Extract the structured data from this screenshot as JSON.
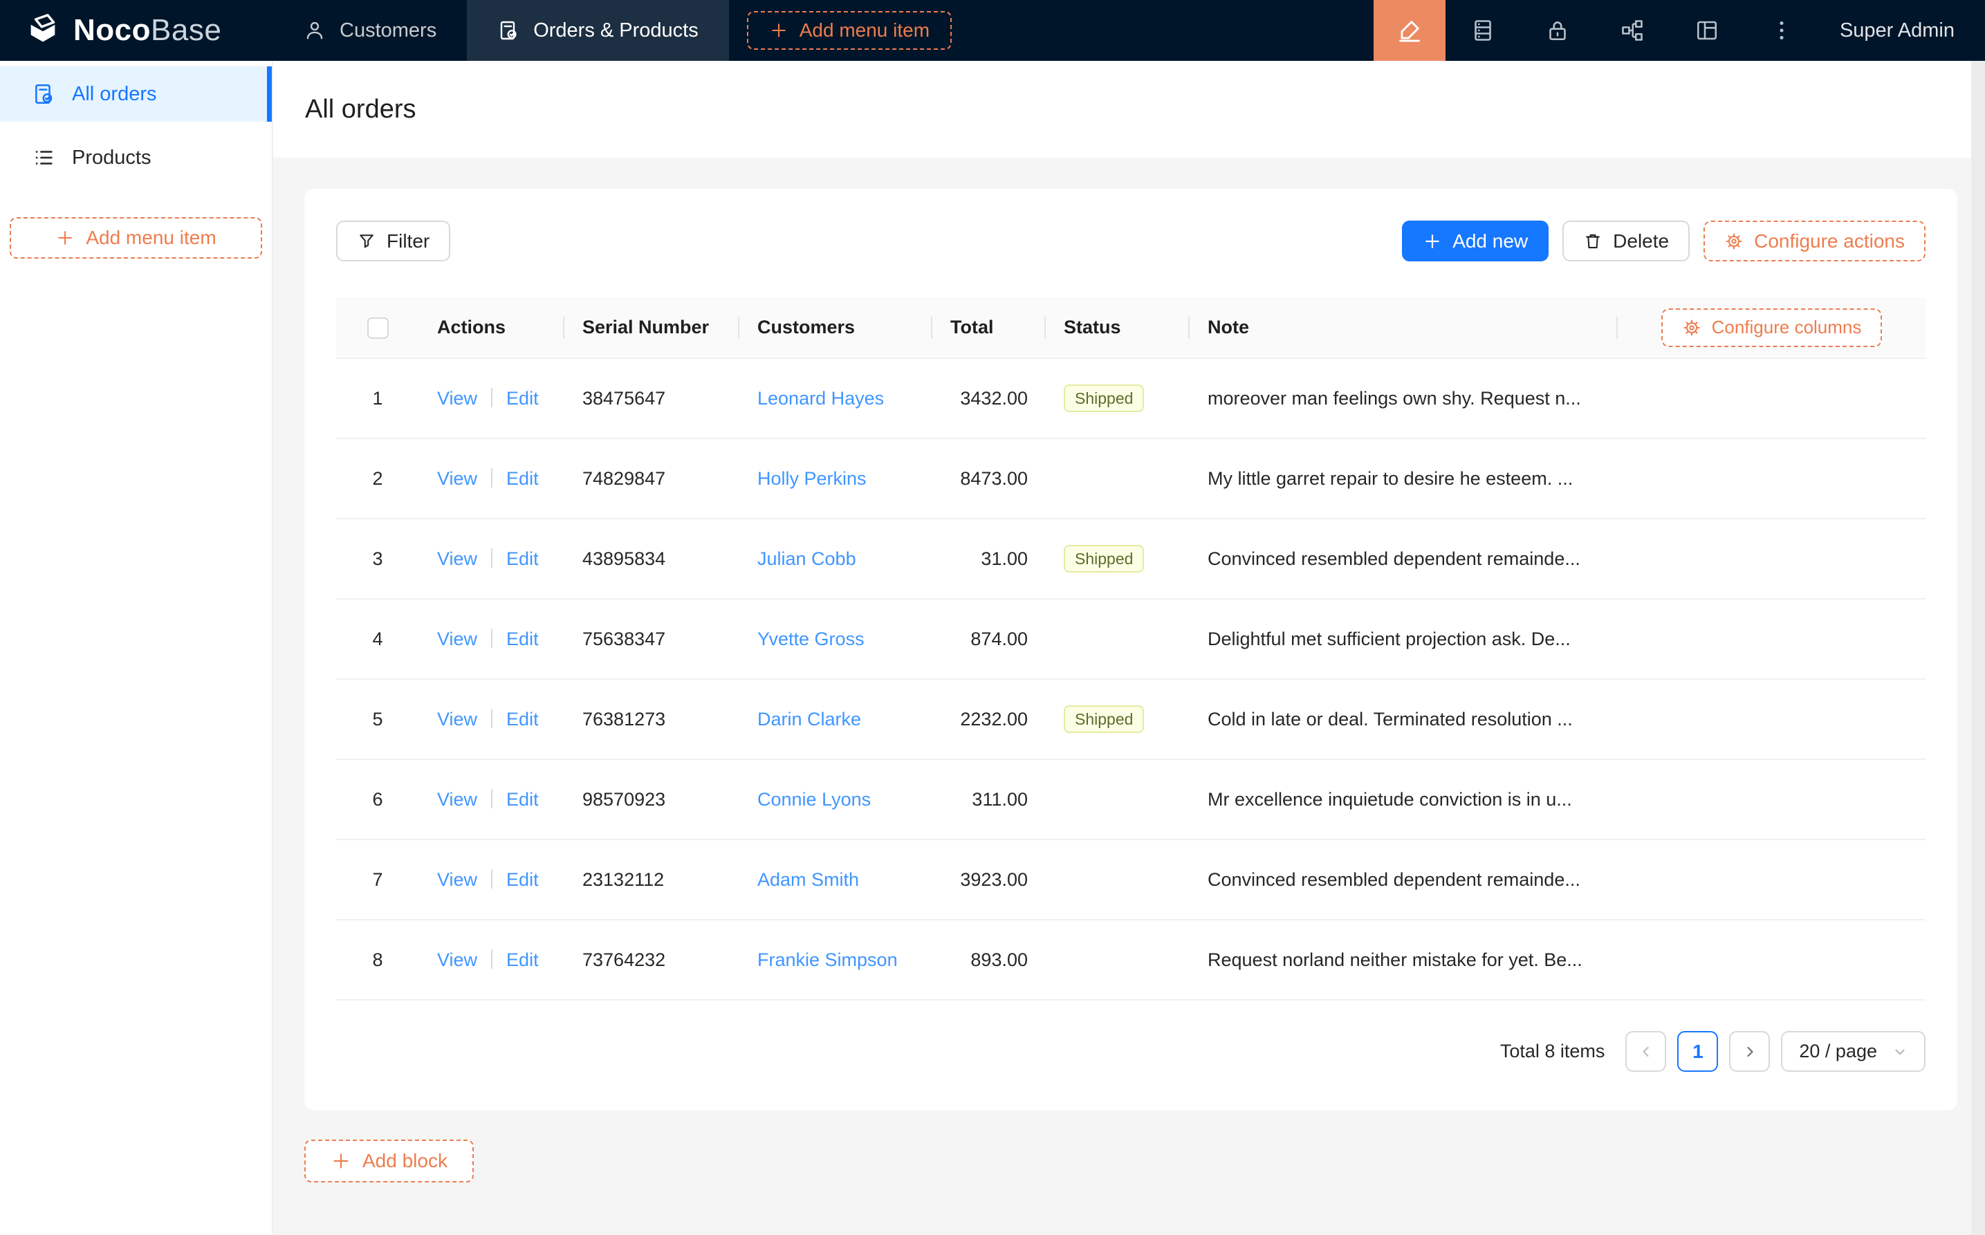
{
  "colors": {
    "topbar_bg": "#001529",
    "topbar_active_tab_bg": "#1d2f42",
    "accent_orange": "#ED7D4E",
    "editor_button_bg": "#EC8A62",
    "primary_blue": "#1677ff",
    "link_blue": "#4096ff",
    "sidebar_active_bg": "#e6f4ff",
    "tag_shipped_bg": "#fcffe6",
    "tag_shipped_border": "#e3ec9e",
    "tag_shipped_text": "#5e6c2a"
  },
  "topbar": {
    "logo": {
      "primary": "Noco",
      "secondary": "Base"
    },
    "tabs": [
      {
        "label": "Customers"
      },
      {
        "label": "Orders & Products"
      }
    ],
    "add_menu_item_label": "Add menu item",
    "right_icons": [
      "ui-editor-highlighter",
      "database",
      "lock",
      "workflow",
      "layout",
      "more"
    ],
    "user_label": "Super Admin"
  },
  "sidebar": {
    "items": [
      {
        "label": "All orders",
        "icon": "file-check",
        "active": true
      },
      {
        "label": "Products",
        "icon": "list",
        "active": false
      }
    ],
    "add_menu_item_label": "Add menu item"
  },
  "page": {
    "title": "All orders"
  },
  "toolbar": {
    "filter_label": "Filter",
    "add_new_label": "Add new",
    "delete_label": "Delete",
    "configure_actions_label": "Configure actions"
  },
  "table": {
    "configure_columns_label": "Configure columns",
    "columns": [
      "Actions",
      "Serial Number",
      "Customers",
      "Total",
      "Status",
      "Note"
    ],
    "action_labels": [
      "View",
      "Edit"
    ],
    "rows": [
      {
        "index": "1",
        "serial": "38475647",
        "customer": "Leonard Hayes",
        "total": "3432.00",
        "status": "Shipped",
        "note": "moreover man feelings own shy. Request n..."
      },
      {
        "index": "2",
        "serial": "74829847",
        "customer": "Holly Perkins",
        "total": "8473.00",
        "status": "",
        "note": "My little garret repair to desire he esteem. ..."
      },
      {
        "index": "3",
        "serial": "43895834",
        "customer": "Julian Cobb",
        "total": "31.00",
        "status": "Shipped",
        "note": "Convinced resembled dependent remainde..."
      },
      {
        "index": "4",
        "serial": "75638347",
        "customer": "Yvette Gross",
        "total": "874.00",
        "status": "",
        "note": "Delightful met sufficient projection ask. De..."
      },
      {
        "index": "5",
        "serial": "76381273",
        "customer": "Darin Clarke",
        "total": "2232.00",
        "status": "Shipped",
        "note": "Cold in late or deal. Terminated resolution ..."
      },
      {
        "index": "6",
        "serial": "98570923",
        "customer": "Connie Lyons",
        "total": "311.00",
        "status": "",
        "note": "Mr excellence inquietude conviction is in u..."
      },
      {
        "index": "7",
        "serial": "23132112",
        "customer": "Adam Smith",
        "total": "3923.00",
        "status": "",
        "note": "Convinced resembled dependent remainde..."
      },
      {
        "index": "8",
        "serial": "73764232",
        "customer": "Frankie Simpson",
        "total": "893.00",
        "status": "",
        "note": "Request norland neither mistake for yet. Be..."
      }
    ]
  },
  "pagination": {
    "total_label": "Total 8 items",
    "current_page": "1",
    "page_size_label": "20 / page"
  },
  "footer": {
    "add_block_label": "Add block"
  }
}
